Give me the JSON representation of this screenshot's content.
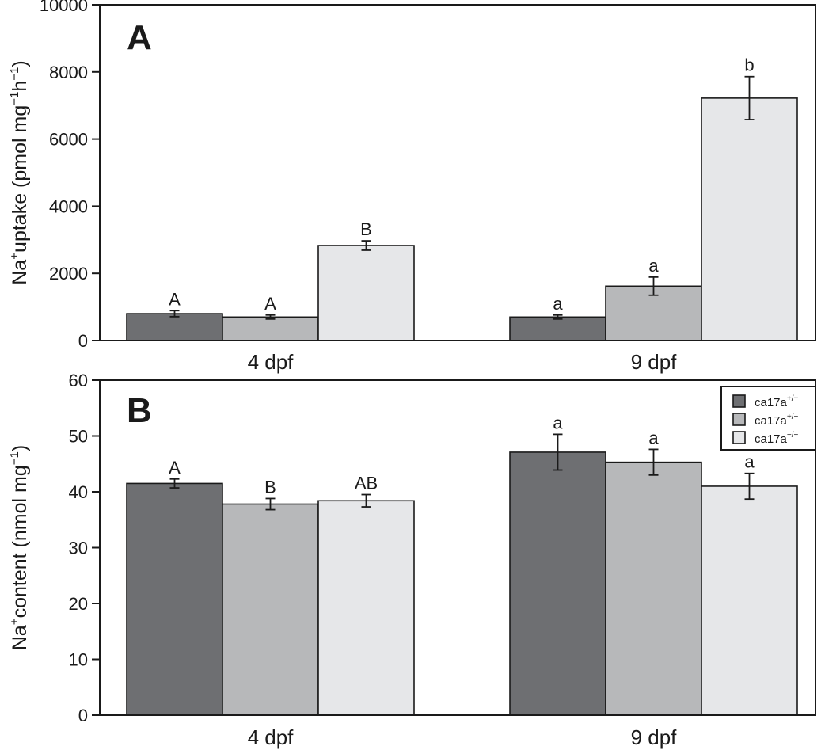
{
  "colors": {
    "genotype_1": "#6e6f72",
    "genotype_2": "#b7b8ba",
    "genotype_3": "#e6e7e9"
  },
  "legend": {
    "placement": "top-right",
    "entries": [
      {
        "base": "ca17a",
        "sup": "+/+"
      },
      {
        "base": "ca17a",
        "sup": "+/−"
      },
      {
        "base": "ca17a",
        "sup": "−/−"
      }
    ]
  },
  "chart_data": [
    {
      "type": "bar",
      "panel_label": "A",
      "categories": [
        "4 dpf",
        "9 dpf"
      ],
      "ylabel": {
        "pre": "Na",
        "pre_sup": "+",
        "main": "uptake (pmol mg",
        "sup1": "−1",
        "mid": "h",
        "sup2": "−1",
        "post": ")"
      },
      "ylim": [
        0,
        10000
      ],
      "yticks": [
        "0",
        "2000",
        "4000",
        "6000",
        "8000",
        "10000"
      ],
      "grid": false,
      "series": [
        {
          "values": [
            800,
            700
          ],
          "errors": [
            90,
            60
          ],
          "labels": [
            "A",
            "a"
          ]
        },
        {
          "values": [
            700,
            1620
          ],
          "errors": [
            60,
            270
          ],
          "labels": [
            "A",
            "a"
          ]
        },
        {
          "values": [
            2830,
            7220
          ],
          "errors": [
            140,
            640
          ],
          "labels": [
            "B",
            "b"
          ]
        }
      ]
    },
    {
      "type": "bar",
      "panel_label": "B",
      "categories": [
        "4 dpf",
        "9 dpf"
      ],
      "ylabel": {
        "pre": "Na",
        "pre_sup": "+",
        "main": "content (nmol mg",
        "sup1": "−1",
        "mid": "",
        "sup2": "",
        "post": ")"
      },
      "ylim": [
        0,
        60
      ],
      "yticks": [
        "0",
        "10",
        "20",
        "30",
        "40",
        "50",
        "60"
      ],
      "grid": false,
      "series": [
        {
          "values": [
            41.5,
            47.1
          ],
          "errors": [
            0.8,
            3.2
          ],
          "labels": [
            "A",
            "a"
          ]
        },
        {
          "values": [
            37.8,
            45.3
          ],
          "errors": [
            1.0,
            2.3
          ],
          "labels": [
            "B",
            "a"
          ]
        },
        {
          "values": [
            38.4,
            41.0
          ],
          "errors": [
            1.1,
            2.3
          ],
          "labels": [
            "AB",
            "a"
          ]
        }
      ]
    }
  ]
}
